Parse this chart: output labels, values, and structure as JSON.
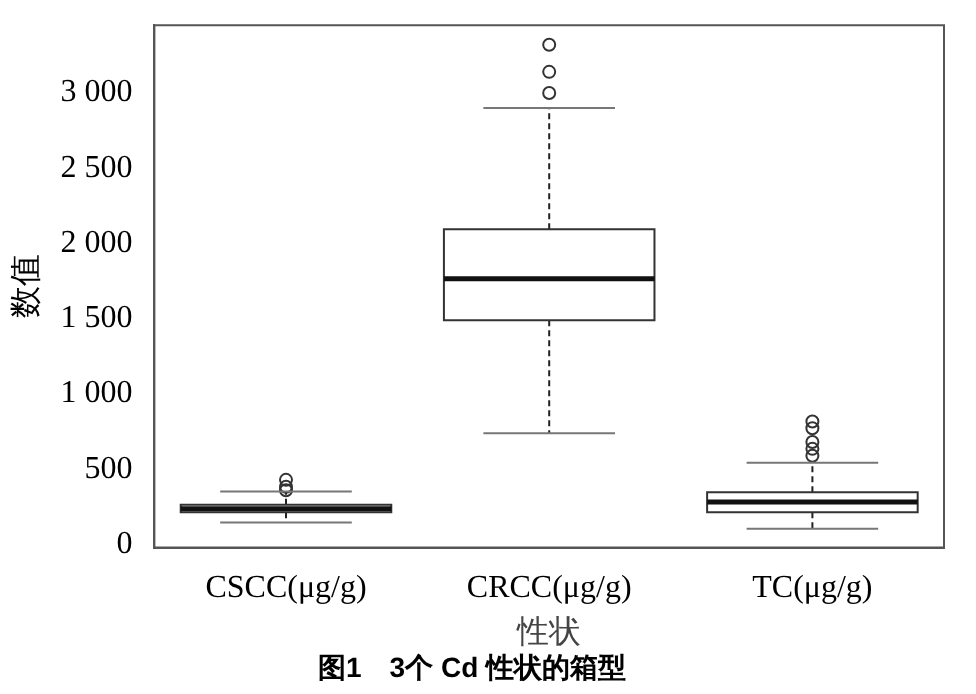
{
  "chart_data": {
    "type": "box",
    "title": "图1　3个 Cd 性状的箱型",
    "xlabel": "性状",
    "ylabel": "数值",
    "categories": [
      "CSCC(μg/g)",
      "CRCC(μg/g)",
      "TC(μg/g)"
    ],
    "boxes": [
      {
        "low": 146,
        "q1": 215,
        "median": 238,
        "q3": 265,
        "high": 352,
        "outliers": [
          361,
          384,
          430
        ]
      },
      {
        "low": 740,
        "q1": 1490,
        "median": 1765,
        "q3": 2094,
        "high": 2900,
        "outliers": [
          3000,
          3140,
          3320
        ]
      },
      {
        "low": 105,
        "q1": 215,
        "median": 283,
        "q3": 347,
        "high": 544,
        "outliers": [
          590,
          636,
          681,
          773,
          818
        ]
      }
    ],
    "ylim": [
      -20,
      3450
    ],
    "yticks": [
      {
        "value": 0,
        "label": "0"
      },
      {
        "value": 500,
        "label": "500"
      },
      {
        "value": 1000,
        "label": "1 000"
      },
      {
        "value": 1500,
        "label": "1 500"
      },
      {
        "value": 2000,
        "label": "2 000"
      },
      {
        "value": 2500,
        "label": "2 500"
      },
      {
        "value": 3000,
        "label": "3 000"
      }
    ],
    "grid": false,
    "legend": false,
    "marker": "circle"
  }
}
